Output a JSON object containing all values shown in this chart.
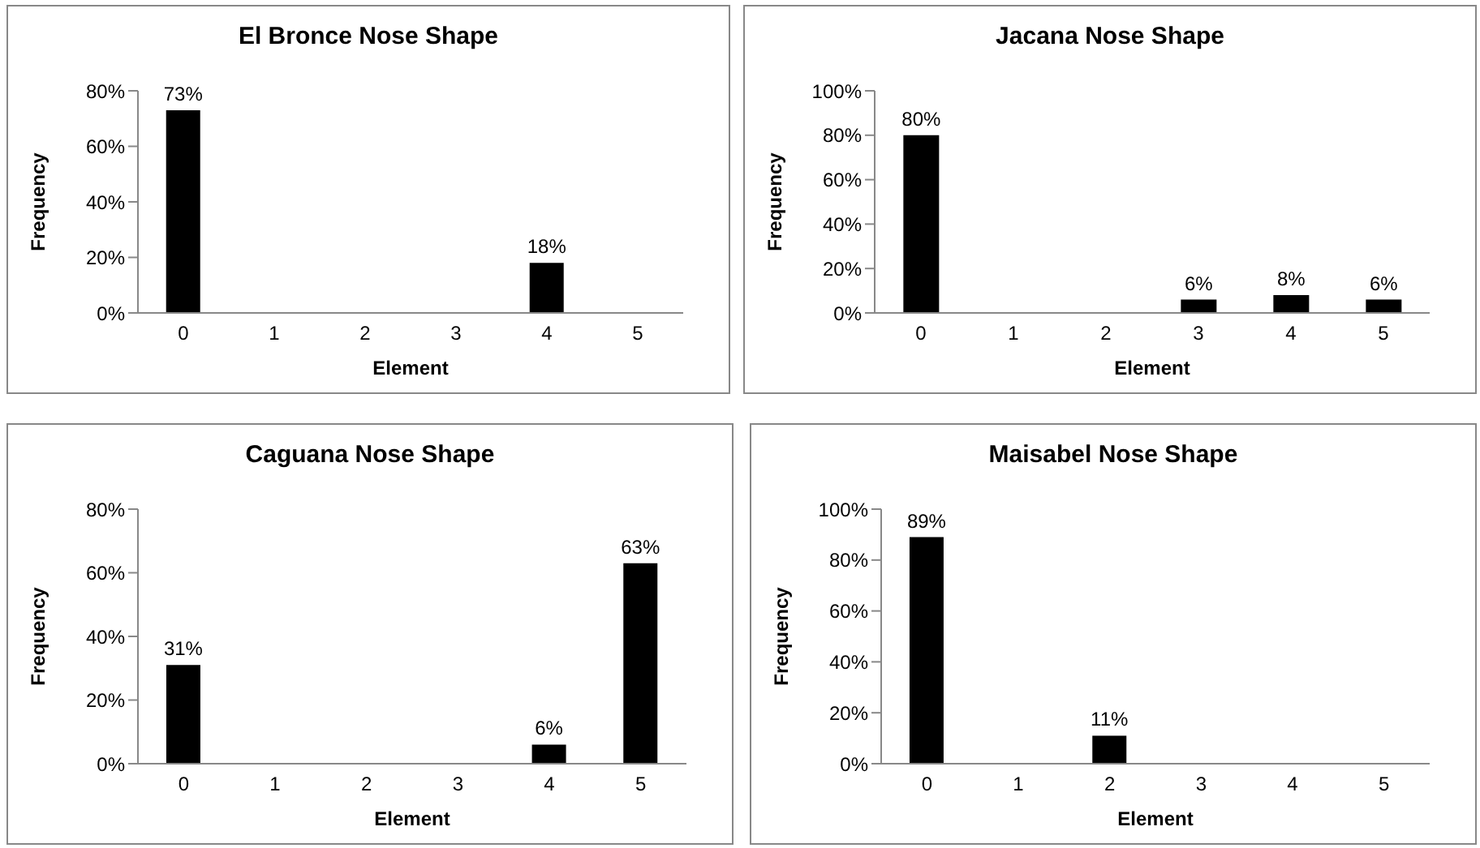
{
  "chart_data": [
    {
      "type": "bar",
      "title": "El Bronce Nose Shape",
      "xlabel": "Element",
      "ylabel": "Frequency",
      "categories": [
        "0",
        "1",
        "2",
        "3",
        "4",
        "5"
      ],
      "values": [
        73,
        0,
        0,
        0,
        18,
        0
      ],
      "value_labels": [
        "73%",
        null,
        null,
        null,
        "18%",
        null
      ],
      "color": "#000000",
      "ylim": [
        0,
        80
      ],
      "yticks": [
        {
          "value": 0,
          "label": "0%"
        },
        {
          "value": 20,
          "label": "20%"
        },
        {
          "value": 40,
          "label": "40%"
        },
        {
          "value": 60,
          "label": "60%"
        },
        {
          "value": 80,
          "label": "80%"
        }
      ]
    },
    {
      "type": "bar",
      "title": "Jacana Nose Shape",
      "xlabel": "Element",
      "ylabel": "Frequency",
      "categories": [
        "0",
        "1",
        "2",
        "3",
        "4",
        "5"
      ],
      "values": [
        80,
        0,
        0,
        6,
        8,
        6
      ],
      "value_labels": [
        "80%",
        null,
        null,
        "6%",
        "8%",
        "6%"
      ],
      "color": "#000000",
      "ylim": [
        0,
        100
      ],
      "yticks": [
        {
          "value": 0,
          "label": "0%"
        },
        {
          "value": 20,
          "label": "20%"
        },
        {
          "value": 40,
          "label": "40%"
        },
        {
          "value": 60,
          "label": "60%"
        },
        {
          "value": 80,
          "label": "80%"
        },
        {
          "value": 100,
          "label": "100%"
        }
      ]
    },
    {
      "type": "bar",
      "title": "Caguana Nose Shape",
      "xlabel": "Element",
      "ylabel": "Frequency",
      "categories": [
        "0",
        "1",
        "2",
        "3",
        "4",
        "5"
      ],
      "values": [
        31,
        0,
        0,
        0,
        6,
        63
      ],
      "value_labels": [
        "31%",
        null,
        null,
        null,
        "6%",
        "63%"
      ],
      "color": "#000000",
      "ylim": [
        0,
        80
      ],
      "yticks": [
        {
          "value": 0,
          "label": "0%"
        },
        {
          "value": 20,
          "label": "20%"
        },
        {
          "value": 40,
          "label": "40%"
        },
        {
          "value": 60,
          "label": "60%"
        },
        {
          "value": 80,
          "label": "80%"
        }
      ]
    },
    {
      "type": "bar",
      "title": "Maisabel Nose Shape",
      "xlabel": "Element",
      "ylabel": "Frequency",
      "categories": [
        "0",
        "1",
        "2",
        "3",
        "4",
        "5"
      ],
      "values": [
        89,
        0,
        11,
        0,
        0,
        0
      ],
      "value_labels": [
        "89%",
        null,
        "11%",
        null,
        null,
        null
      ],
      "color": "#000000",
      "ylim": [
        0,
        100
      ],
      "yticks": [
        {
          "value": 0,
          "label": "0%"
        },
        {
          "value": 20,
          "label": "20%"
        },
        {
          "value": 40,
          "label": "40%"
        },
        {
          "value": 60,
          "label": "60%"
        },
        {
          "value": 80,
          "label": "80%"
        },
        {
          "value": 100,
          "label": "100%"
        }
      ]
    }
  ]
}
